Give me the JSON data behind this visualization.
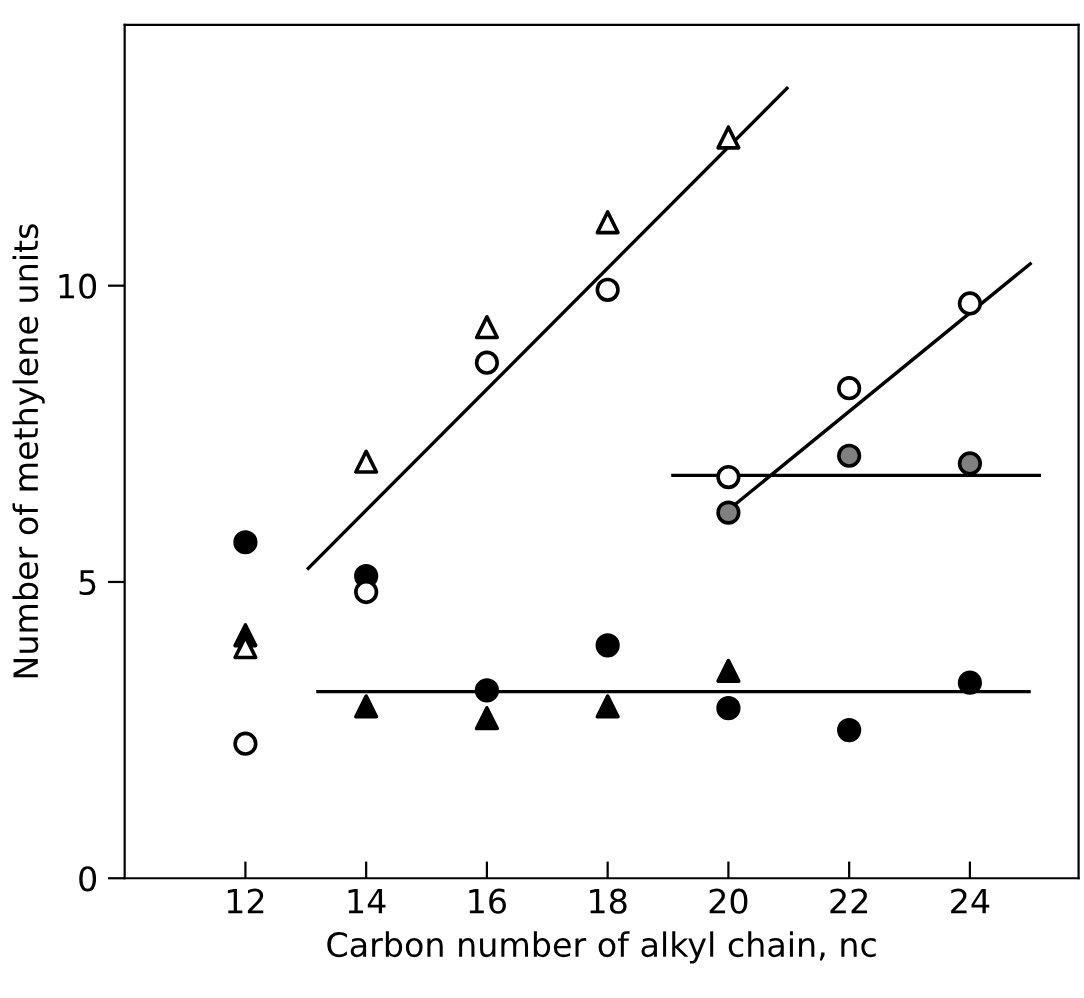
{
  "chart_data": {
    "type": "scatter",
    "xlabel": "Carbon number of alkyl chain, nc",
    "ylabel": "Number of methylene units",
    "xlim": [
      10,
      25.8
    ],
    "ylim": [
      0,
      14.4
    ],
    "xticks": [
      12,
      14,
      16,
      18,
      20,
      22,
      24
    ],
    "yticks": [
      0,
      5,
      10
    ],
    "grid": false,
    "legend": false,
    "series": [
      {
        "color": "#000000",
        "marker": "circle",
        "x": [
          12,
          14,
          16,
          18,
          20,
          22,
          24
        ],
        "values": [
          5.67,
          5.1,
          3.17,
          3.93,
          2.87,
          2.5,
          3.3
        ]
      },
      {
        "color": "#000000",
        "marker": "triangle",
        "x": [
          12,
          14,
          16,
          18,
          20
        ],
        "values": [
          4.1,
          2.9,
          2.7,
          2.9,
          3.5
        ]
      },
      {
        "color": "#ffffff",
        "marker": "triangle",
        "x": [
          12,
          14,
          16,
          18,
          20
        ],
        "values": [
          3.9,
          7.03,
          9.3,
          11.07,
          12.5
        ]
      },
      {
        "color": "#ffffff",
        "marker": "circle",
        "x": [
          12,
          14,
          16,
          18
        ],
        "values": [
          2.27,
          4.83,
          8.7,
          9.93
        ]
      },
      {
        "color": "#ffffff",
        "marker": "circle",
        "x": [
          20,
          22,
          24
        ],
        "values": [
          6.77,
          8.27,
          9.7
        ]
      },
      {
        "color": "#808080",
        "marker": "circle",
        "x": [
          20,
          22,
          24
        ],
        "values": [
          6.17,
          7.13,
          7.0
        ]
      },
      {
        "type": "line",
        "color": "#000000",
        "line_style": "solid",
        "x": [
          13.04,
          20.97
        ],
        "values": [
          5.23,
          13.33
        ]
      },
      {
        "type": "line",
        "color": "#000000",
        "line_style": "solid",
        "x": [
          13.2,
          24.98
        ],
        "values": [
          3.15,
          3.15
        ]
      },
      {
        "type": "line",
        "color": "#000000",
        "line_style": "solid",
        "x": [
          19.86,
          25.0
        ],
        "values": [
          6.1,
          10.37
        ]
      },
      {
        "type": "line",
        "color": "#000000",
        "line_style": "solid",
        "x": [
          19.08,
          25.15
        ],
        "values": [
          6.8,
          6.8
        ]
      }
    ]
  }
}
